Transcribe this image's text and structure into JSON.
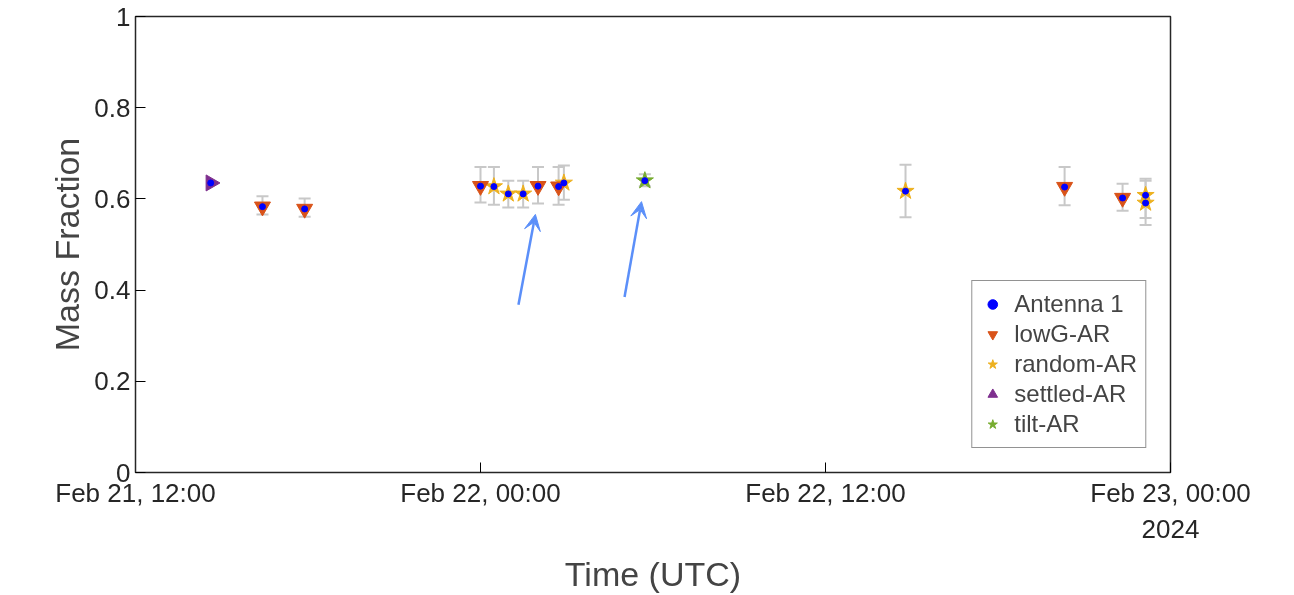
{
  "chart_data": {
    "type": "scatter",
    "xlabel": "Time (UTC)",
    "ylabel": "Mass Fraction",
    "annotations": [
      "2024"
    ],
    "xlim": [
      "2024-02-21T12:00",
      "2024-02-23T00:00"
    ],
    "xticks": [
      {
        "value": "2024-02-21T12:00",
        "label": "Feb 21, 12:00"
      },
      {
        "value": "2024-02-22T00:00",
        "label": "Feb 22, 00:00"
      },
      {
        "value": "2024-02-22T12:00",
        "label": "Feb 22, 12:00"
      },
      {
        "value": "2024-02-23T00:00",
        "label": "Feb 23, 00:00"
      }
    ],
    "ylim": [
      0,
      1
    ],
    "yticks": [
      0,
      0.2,
      0.4,
      0.6,
      0.8,
      1
    ],
    "grid": false,
    "legend": "bottom right",
    "series": [
      {
        "name": "Antenna 1",
        "color": "#0000ff",
        "marker": "circle",
        "x": [
          "2024-02-21T14:37",
          "2024-02-21T16:25",
          "2024-02-21T17:53",
          "2024-02-22T00:00",
          "2024-02-22T00:28",
          "2024-02-22T00:58",
          "2024-02-22T01:29",
          "2024-02-22T02:00",
          "2024-02-22T02:43",
          "2024-02-22T02:54",
          "2024-02-22T05:43",
          "2024-02-22T14:47",
          "2024-02-22T20:19",
          "2024-02-22T22:20",
          "2024-02-22T23:08",
          "2024-02-22T23:08"
        ],
        "values": [
          0.635,
          0.583,
          0.578,
          0.628,
          0.627,
          0.611,
          0.611,
          0.628,
          0.627,
          0.635,
          0.64,
          0.617,
          0.626,
          0.602,
          0.608,
          0.591
        ],
        "errors": [
          null,
          [
            0.566,
            0.606
          ],
          [
            0.561,
            0.601
          ],
          [
            0.592,
            0.67
          ],
          [
            0.587,
            0.67
          ],
          [
            0.581,
            0.64
          ],
          [
            0.581,
            0.64
          ],
          [
            0.59,
            0.67
          ],
          [
            0.587,
            0.67
          ],
          [
            0.598,
            0.673
          ],
          [
            0.628,
            0.654
          ],
          [
            0.56,
            0.675
          ],
          [
            0.586,
            0.67
          ],
          [
            0.574,
            0.633
          ],
          [
            0.543,
            0.644
          ],
          [
            0.558,
            0.64
          ]
        ]
      },
      {
        "name": "lowG-AR",
        "color": "#d95319",
        "marker": "triangle_down",
        "x": [
          "2024-02-21T16:25",
          "2024-02-21T17:53",
          "2024-02-22T00:00",
          "2024-02-22T02:00",
          "2024-02-22T02:43",
          "2024-02-22T20:19",
          "2024-02-22T22:20"
        ],
        "values": [
          0.583,
          0.578,
          0.628,
          0.628,
          0.627,
          0.626,
          0.602
        ]
      },
      {
        "name": "random-AR",
        "color": "#edb120",
        "marker": "star",
        "x": [
          "2024-02-22T00:28",
          "2024-02-22T00:58",
          "2024-02-22T01:29",
          "2024-02-22T02:54",
          "2024-02-22T14:47",
          "2024-02-22T23:08",
          "2024-02-22T23:08"
        ],
        "values": [
          0.627,
          0.611,
          0.611,
          0.635,
          0.617,
          0.608,
          0.591
        ]
      },
      {
        "name": "settled-AR",
        "color": "#7e2f8e",
        "marker": "triangle_right",
        "x": [
          "2024-02-21T14:37"
        ],
        "values": [
          0.635
        ]
      },
      {
        "name": "tilt-AR",
        "color": "#77ac30",
        "marker": "star",
        "x": [
          "2024-02-22T05:43"
        ],
        "values": [
          0.64
        ]
      }
    ]
  }
}
